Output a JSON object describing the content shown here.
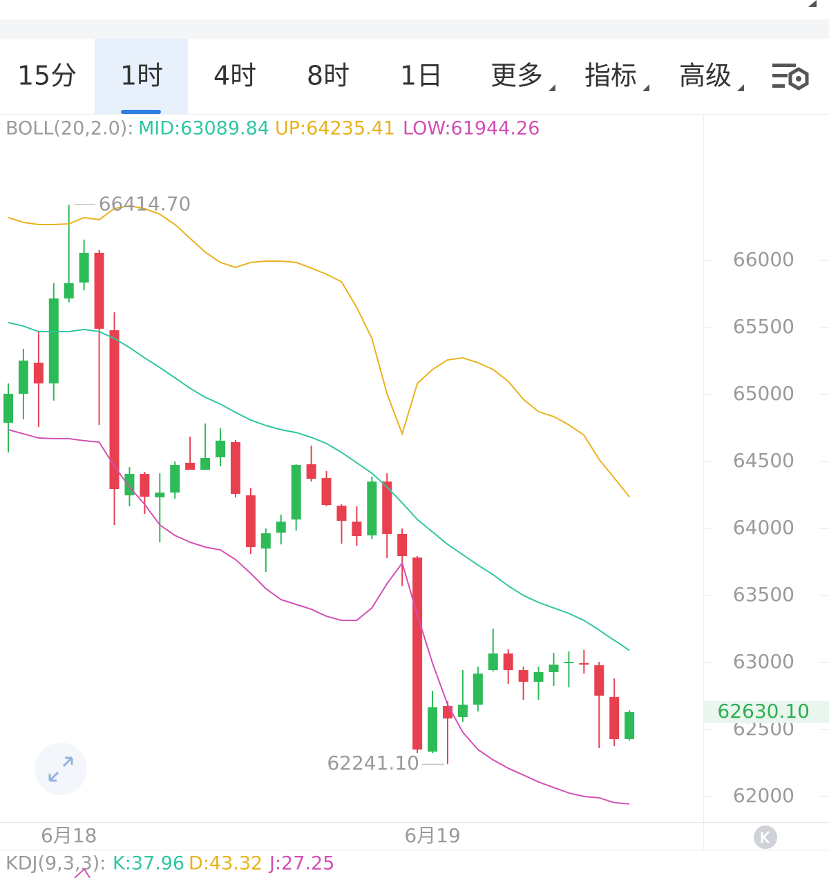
{
  "tabs": [
    "15分",
    "1时",
    "4时",
    "8时",
    "1日",
    "更多",
    "指标",
    "高级"
  ],
  "active_tab": 1,
  "chart_data": {
    "type": "candlestick",
    "indicator_label": "BOLL(20,2.0):",
    "categories": [
      null,
      null,
      null,
      null,
      "6月18",
      null,
      null,
      null,
      null,
      null,
      null,
      null,
      null,
      null,
      null,
      null,
      null,
      null,
      null,
      null,
      null,
      null,
      null,
      null,
      null,
      null,
      null,
      null,
      "6月19",
      null,
      null,
      null,
      null,
      null,
      null,
      null,
      null,
      null,
      null,
      null,
      null,
      null
    ],
    "open": [
      64789,
      65005,
      65237,
      65082,
      65716,
      65835,
      66057,
      65479,
      64247,
      64407,
      64232,
      64268,
      64490,
      64438,
      64531,
      64644,
      64247,
      63850,
      63969,
      64067,
      64479,
      64376,
      64170,
      64051,
      63948,
      64350,
      63959,
      63783,
      62335,
      62675,
      62593,
      62685,
      62943,
      63067,
      62943,
      62856,
      62928,
      62995,
      62995,
      62979,
      62742,
      62428
    ],
    "high": [
      65082,
      65340,
      65469,
      65830,
      66414.7,
      66155,
      66077,
      65613,
      64459,
      64423,
      64412,
      64500,
      64685,
      64783,
      64747,
      64660,
      64304,
      64000,
      64103,
      64479,
      64618,
      64428,
      64180,
      64165,
      64387,
      64412,
      64000,
      63794,
      62788,
      62711,
      62943,
      62969,
      63252,
      63098,
      62969,
      62969,
      63072,
      63082,
      63093,
      63005,
      62881,
      62644
    ],
    "low": [
      64567,
      64814,
      64758,
      64954,
      65686,
      65778,
      64773,
      64026,
      64165,
      64108,
      63897,
      64222,
      64438,
      64438,
      64464,
      64232,
      63809,
      63675,
      63881,
      63984,
      64350,
      64165,
      63887,
      63871,
      63923,
      63778,
      63572,
      62325,
      62325,
      62241.1,
      62557,
      62634,
      62933,
      62840,
      62721,
      62721,
      62825,
      62814,
      62917,
      62361,
      62376,
      62417
    ],
    "close": [
      65005,
      65253,
      65082,
      65716,
      65830,
      66057,
      65490,
      64294,
      64407,
      64237,
      64268,
      64474,
      64438,
      64526,
      64655,
      64258,
      63861,
      63964,
      64051,
      64474,
      64371,
      64175,
      64057,
      63943,
      64350,
      63959,
      63794,
      62350,
      62665,
      62582,
      62685,
      62917,
      63067,
      62943,
      62856,
      62928,
      62984,
      63005,
      62984,
      62752,
      62428,
      62630.1
    ],
    "up_color": "#2dbb57",
    "down_color": "#e8404f",
    "lines": [
      {
        "name": "MID:63089.84",
        "color": "#2fc6a2",
        "values": [
          65536,
          65510,
          65469,
          65469,
          65469,
          65485,
          65469,
          65418,
          65350,
          65273,
          65201,
          65124,
          65046,
          64979,
          64928,
          64866,
          64809,
          64768,
          64737,
          64716,
          64680,
          64634,
          64567,
          64490,
          64412,
          64309,
          64191,
          64067,
          63974,
          63881,
          63804,
          63727,
          63655,
          63572,
          63500,
          63448,
          63407,
          63366,
          63314,
          63242,
          63165,
          63089.84
        ]
      },
      {
        "name": "UP:64235.41",
        "color": "#e9b21c",
        "values": [
          66320,
          66284,
          66268,
          66268,
          66273,
          66320,
          66304,
          66387,
          66407,
          66387,
          66345,
          66268,
          66165,
          66062,
          65985,
          65948,
          65985,
          65995,
          65995,
          65985,
          65943,
          65897,
          65840,
          65649,
          65418,
          65005,
          64706,
          65082,
          65186,
          65258,
          65273,
          65237,
          65186,
          65098,
          64964,
          64871,
          64835,
          64773,
          64696,
          64515,
          64376,
          64235.41
        ]
      },
      {
        "name": "LOW:61944.26",
        "color": "#d24fb4",
        "values": [
          64737,
          64706,
          64675,
          64670,
          64670,
          64655,
          64644,
          64464,
          64309,
          64180,
          64026,
          63948,
          63897,
          63861,
          63840,
          63768,
          63665,
          63551,
          63469,
          63433,
          63397,
          63345,
          63314,
          63314,
          63407,
          63588,
          63742,
          63356,
          62995,
          62685,
          62479,
          62350,
          62273,
          62211,
          62160,
          62108,
          62067,
          62026,
          62000,
          61990,
          61954,
          61944.26
        ]
      }
    ],
    "ylim": [
      61800,
      67100
    ],
    "yticks": [
      62000,
      62500,
      63000,
      63500,
      64000,
      64500,
      65000,
      65500,
      66000
    ],
    "annotations": [
      {
        "value": 66414.7,
        "label": "66414.70",
        "index": 4
      },
      {
        "value": 62241.1,
        "label": "62241.10",
        "index": 29
      }
    ],
    "last_price": {
      "value": 62630.1,
      "label": "62630.10"
    }
  },
  "kdj": {
    "label": "KDJ(9,3,3):",
    "items": [
      {
        "text": "K:37.96",
        "color": "#2fc6a2"
      },
      {
        "text": "D:43.32",
        "color": "#e9b21c"
      },
      {
        "text": "J:27.25",
        "color": "#d24fb4"
      }
    ]
  }
}
